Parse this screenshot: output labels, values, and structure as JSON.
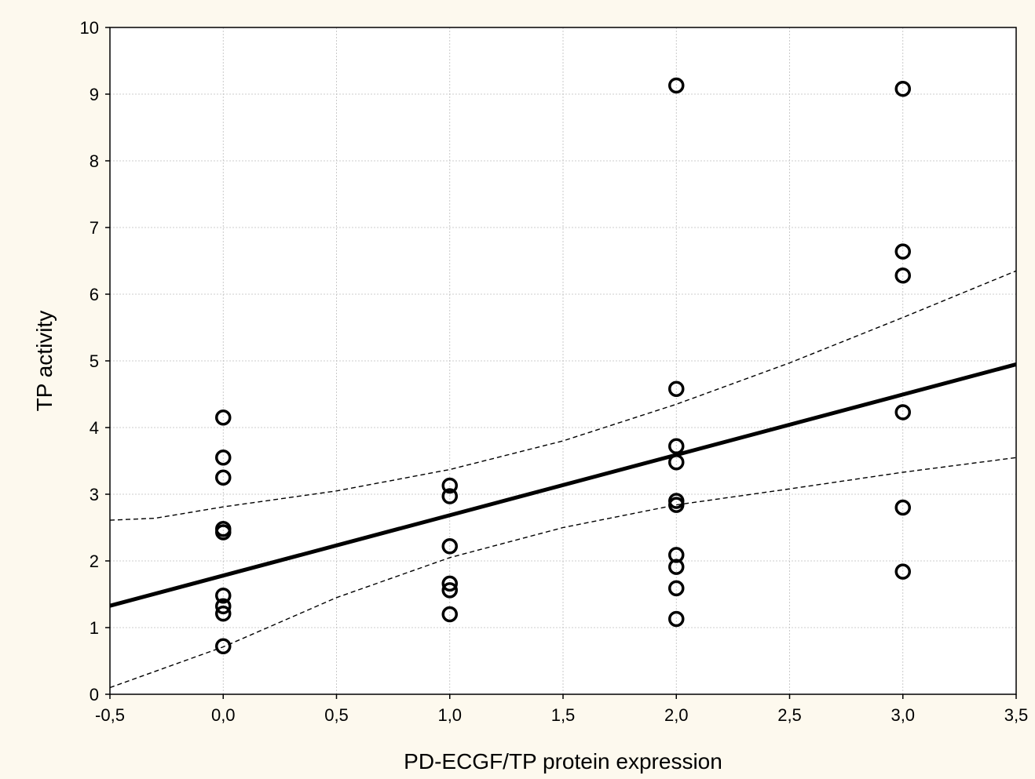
{
  "chart_data": {
    "type": "scatter",
    "title": "",
    "xlabel": "PD-ECGF/TP protein expression",
    "ylabel": "TP activity",
    "xlim": [
      -0.5,
      3.5
    ],
    "ylim": [
      0,
      10
    ],
    "xticks": [
      -0.5,
      0.0,
      0.5,
      1.0,
      1.5,
      2.0,
      2.5,
      3.0,
      3.5
    ],
    "xtick_labels": [
      "-0,5",
      "0,0",
      "0,5",
      "1,0",
      "1,5",
      "2,0",
      "2,5",
      "3,0",
      "3,5"
    ],
    "yticks": [
      0,
      1,
      2,
      3,
      4,
      5,
      6,
      7,
      8,
      9,
      10
    ],
    "ytick_labels": [
      "0",
      "1",
      "2",
      "3",
      "4",
      "5",
      "6",
      "7",
      "8",
      "9",
      "10"
    ],
    "grid": true,
    "colors": {
      "background": "#fdf9ee",
      "plot_area": "#ffffff",
      "marks": "#000000",
      "grid": "#bdbdbd"
    },
    "points": [
      {
        "x": 0,
        "y": 4.15
      },
      {
        "x": 0,
        "y": 3.55
      },
      {
        "x": 0,
        "y": 3.25
      },
      {
        "x": 0,
        "y": 2.48
      },
      {
        "x": 0,
        "y": 2.43
      },
      {
        "x": 0,
        "y": 1.48
      },
      {
        "x": 0,
        "y": 1.32
      },
      {
        "x": 0,
        "y": 1.21
      },
      {
        "x": 0,
        "y": 0.72
      },
      {
        "x": 1,
        "y": 3.13
      },
      {
        "x": 1,
        "y": 2.97
      },
      {
        "x": 1,
        "y": 2.22
      },
      {
        "x": 1,
        "y": 1.66
      },
      {
        "x": 1,
        "y": 1.56
      },
      {
        "x": 1,
        "y": 1.2
      },
      {
        "x": 2,
        "y": 9.13
      },
      {
        "x": 2,
        "y": 4.58
      },
      {
        "x": 2,
        "y": 3.72
      },
      {
        "x": 2,
        "y": 3.48
      },
      {
        "x": 2,
        "y": 2.9
      },
      {
        "x": 2,
        "y": 2.84
      },
      {
        "x": 2,
        "y": 2.09
      },
      {
        "x": 2,
        "y": 1.91
      },
      {
        "x": 2,
        "y": 1.59
      },
      {
        "x": 2,
        "y": 1.13
      },
      {
        "x": 3,
        "y": 9.08
      },
      {
        "x": 3,
        "y": 6.64
      },
      {
        "x": 3,
        "y": 6.28
      },
      {
        "x": 3,
        "y": 4.23
      },
      {
        "x": 3,
        "y": 2.8
      },
      {
        "x": 3,
        "y": 1.84
      }
    ],
    "regression_line": {
      "intercept": 1.78,
      "slope": 0.905
    },
    "confidence_upper": [
      [
        -0.5,
        2.61
      ],
      [
        -0.3,
        2.64
      ],
      [
        0.0,
        2.81
      ],
      [
        0.5,
        3.05
      ],
      [
        1.0,
        3.37
      ],
      [
        1.5,
        3.8
      ],
      [
        2.0,
        4.35
      ],
      [
        2.5,
        4.97
      ],
      [
        3.0,
        5.65
      ],
      [
        3.5,
        6.35
      ]
    ],
    "confidence_lower": [
      [
        -0.5,
        0.1
      ],
      [
        0.0,
        0.71
      ],
      [
        0.5,
        1.45
      ],
      [
        1.0,
        2.05
      ],
      [
        1.5,
        2.5
      ],
      [
        2.0,
        2.84
      ],
      [
        2.5,
        3.08
      ],
      [
        3.0,
        3.33
      ],
      [
        3.5,
        3.55
      ]
    ]
  }
}
